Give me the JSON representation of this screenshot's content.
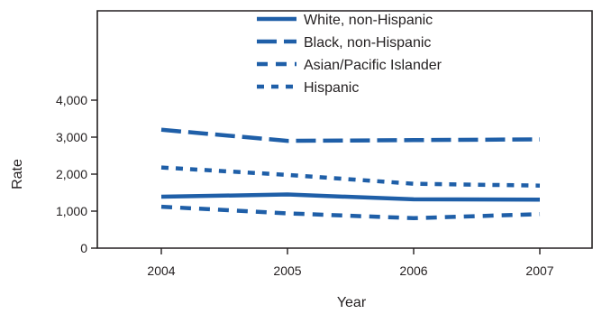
{
  "chart_data": {
    "type": "line",
    "title": "",
    "xlabel": "Year",
    "ylabel": "Rate",
    "categories": [
      "2004",
      "2005",
      "2006",
      "2007"
    ],
    "ylim": [
      0,
      4000
    ],
    "yticks": [
      0,
      1000,
      2000,
      3000,
      4000
    ],
    "ytick_labels": [
      "0",
      "1,000",
      "2,000",
      "3,000",
      "4,000"
    ],
    "grid": false,
    "legend_position": "top-center",
    "series": [
      {
        "name": "White, non-Hispanic",
        "values": [
          1390,
          1450,
          1320,
          1310
        ],
        "color": "#1f5fa8",
        "dash": "solid"
      },
      {
        "name": "Black, non-Hispanic",
        "values": [
          3200,
          2900,
          2920,
          2940
        ],
        "color": "#1f5fa8",
        "dash": "long"
      },
      {
        "name": "Asian/Pacific Islander",
        "values": [
          1120,
          940,
          810,
          920
        ],
        "color": "#1f5fa8",
        "dash": "medium"
      },
      {
        "name": "Hispanic",
        "values": [
          2180,
          1980,
          1740,
          1690
        ],
        "color": "#1f5fa8",
        "dash": "short"
      }
    ]
  }
}
